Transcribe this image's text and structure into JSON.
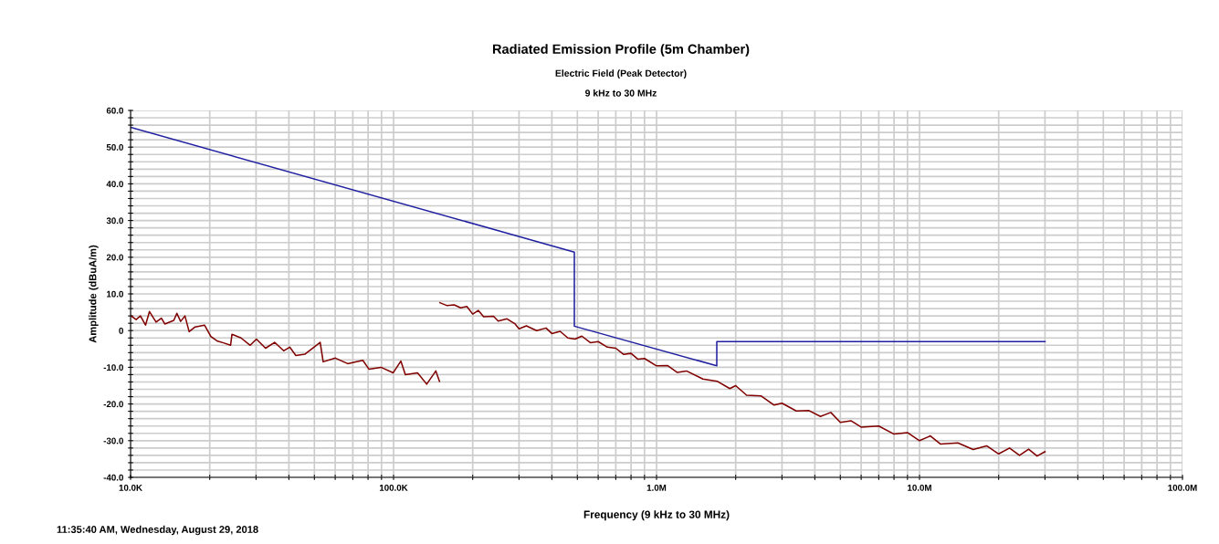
{
  "chart_data": {
    "type": "line",
    "title": "Radiated Emission Profile (5m Chamber)",
    "subtitle": "Electric Field (Peak Detector)\n9 kHz to 30 MHz",
    "xlabel": "Frequency (9 kHz to 30 MHz)",
    "ylabel": "Amplitude (dBuA/m)",
    "annotations": [
      "11:35:40 AM, Wednesday, August 29, 2018"
    ],
    "log": "x",
    "grid": true,
    "marker": "none",
    "line_style": "solid",
    "xlim": [
      10000,
      100000000
    ],
    "ylim": [
      -40,
      60
    ],
    "xticks": [
      {
        "value": 10000,
        "label": "10.0K"
      },
      {
        "value": 20000,
        "label": null
      },
      {
        "value": 30000,
        "label": null
      },
      {
        "value": 40000,
        "label": null
      },
      {
        "value": 50000,
        "label": null
      },
      {
        "value": 60000,
        "label": null
      },
      {
        "value": 70000,
        "label": null
      },
      {
        "value": 80000,
        "label": null
      },
      {
        "value": 90000,
        "label": null
      },
      {
        "value": 100000,
        "label": "100.0K"
      },
      {
        "value": 200000,
        "label": null
      },
      {
        "value": 300000,
        "label": null
      },
      {
        "value": 400000,
        "label": null
      },
      {
        "value": 500000,
        "label": null
      },
      {
        "value": 600000,
        "label": null
      },
      {
        "value": 700000,
        "label": null
      },
      {
        "value": 800000,
        "label": null
      },
      {
        "value": 900000,
        "label": null
      },
      {
        "value": 1000000,
        "label": "1.0M"
      },
      {
        "value": 2000000,
        "label": null
      },
      {
        "value": 3000000,
        "label": null
      },
      {
        "value": 4000000,
        "label": null
      },
      {
        "value": 5000000,
        "label": null
      },
      {
        "value": 6000000,
        "label": null
      },
      {
        "value": 7000000,
        "label": null
      },
      {
        "value": 8000000,
        "label": null
      },
      {
        "value": 9000000,
        "label": null
      },
      {
        "value": 10000000,
        "label": "10.0M"
      },
      {
        "value": 20000000,
        "label": null
      },
      {
        "value": 30000000,
        "label": null
      },
      {
        "value": 40000000,
        "label": null
      },
      {
        "value": 50000000,
        "label": null
      },
      {
        "value": 60000000,
        "label": null
      },
      {
        "value": 70000000,
        "label": null
      },
      {
        "value": 80000000,
        "label": null
      },
      {
        "value": 90000000,
        "label": null
      },
      {
        "value": 100000000,
        "label": "100.0M"
      }
    ],
    "yticks": [
      {
        "value": -40,
        "label": "-40.0"
      },
      {
        "value": -38,
        "label": null
      },
      {
        "value": -36,
        "label": null
      },
      {
        "value": -34,
        "label": null
      },
      {
        "value": -32,
        "label": null
      },
      {
        "value": -30,
        "label": "-30.0"
      },
      {
        "value": -28,
        "label": null
      },
      {
        "value": -26,
        "label": null
      },
      {
        "value": -24,
        "label": null
      },
      {
        "value": -22,
        "label": null
      },
      {
        "value": -20,
        "label": "-20.0"
      },
      {
        "value": -18,
        "label": null
      },
      {
        "value": -16,
        "label": null
      },
      {
        "value": -14,
        "label": null
      },
      {
        "value": -12,
        "label": null
      },
      {
        "value": -10,
        "label": "-10.0"
      },
      {
        "value": -8,
        "label": null
      },
      {
        "value": -6,
        "label": null
      },
      {
        "value": -4,
        "label": null
      },
      {
        "value": -2,
        "label": null
      },
      {
        "value": 0,
        "label": "0"
      },
      {
        "value": 2,
        "label": null
      },
      {
        "value": 4,
        "label": null
      },
      {
        "value": 6,
        "label": null
      },
      {
        "value": 8,
        "label": null
      },
      {
        "value": 10,
        "label": "10.0"
      },
      {
        "value": 12,
        "label": null
      },
      {
        "value": 14,
        "label": null
      },
      {
        "value": 16,
        "label": null
      },
      {
        "value": 18,
        "label": null
      },
      {
        "value": 20,
        "label": "20.0"
      },
      {
        "value": 22,
        "label": null
      },
      {
        "value": 24,
        "label": null
      },
      {
        "value": 26,
        "label": null
      },
      {
        "value": 28,
        "label": null
      },
      {
        "value": 30,
        "label": "30.0"
      },
      {
        "value": 32,
        "label": null
      },
      {
        "value": 34,
        "label": null
      },
      {
        "value": 36,
        "label": null
      },
      {
        "value": 38,
        "label": null
      },
      {
        "value": 40,
        "label": "40.0"
      },
      {
        "value": 42,
        "label": null
      },
      {
        "value": 44,
        "label": null
      },
      {
        "value": 46,
        "label": null
      },
      {
        "value": 48,
        "label": null
      },
      {
        "value": 50,
        "label": "50.0"
      },
      {
        "value": 52,
        "label": null
      },
      {
        "value": 54,
        "label": null
      },
      {
        "value": 56,
        "label": null
      },
      {
        "value": 58,
        "label": null
      },
      {
        "value": 60,
        "label": "60.0"
      }
    ],
    "series": [
      {
        "color": "#1f1fa0",
        "x": [
          10000,
          487000,
          487000,
          1695000,
          1695000,
          30000000
        ],
        "values": [
          55.4,
          21.4,
          1.2,
          -9.6,
          -3.0,
          -3.0
        ]
      },
      {
        "color": "#800000",
        "x": [
          10000,
          10500,
          10900,
          11400,
          11800,
          12500,
          13100,
          13500,
          14600,
          15000,
          15500,
          16100,
          16700,
          17600,
          19100,
          20200,
          21300,
          22700,
          24000,
          24300,
          26300,
          28500,
          30100,
          32600,
          35300,
          38200,
          40300,
          42500,
          46100,
          52600,
          54000,
          60100,
          66900,
          76400,
          80600,
          89600,
          99700,
          106600,
          110900,
          123400,
          133700,
          144800,
          149500
        ],
        "values": [
          4.1,
          3.0,
          4.0,
          1.5,
          5.2,
          2.3,
          3.4,
          1.8,
          2.8,
          4.7,
          2.5,
          4.0,
          -0.3,
          1.0,
          1.5,
          -1.6,
          -2.8,
          -3.4,
          -4.0,
          -1.0,
          -2.0,
          -4.0,
          -2.3,
          -4.8,
          -3.2,
          -5.5,
          -4.5,
          -6.8,
          -6.4,
          -3.2,
          -8.5,
          -7.5,
          -9.0,
          -8.1,
          -10.5,
          -10.0,
          -11.5,
          -8.3,
          -12.0,
          -11.5,
          -14.6,
          -11.0,
          -13.8
        ]
      },
      {
        "color": "#800000",
        "x": [
          150000,
          160000,
          170000,
          180000,
          190000,
          200000,
          210000,
          220000,
          240000,
          250000,
          270000,
          290000,
          300000,
          320000,
          350000,
          380000,
          400000,
          430000,
          460000,
          490000,
          520000,
          560000,
          600000,
          650000,
          700000,
          750000,
          800000,
          850000,
          900000,
          1000000,
          1100000,
          1200000,
          1300000,
          1500000,
          1700000,
          1900000,
          2000000,
          2200000,
          2500000,
          2800000,
          3000000,
          3400000,
          3800000,
          4200000,
          4600000,
          5000000,
          5500000,
          6000000,
          7000000,
          8000000,
          9000000,
          10000000,
          11000000,
          12000000,
          14000000,
          16000000,
          18000000,
          20000000,
          22000000,
          24000000,
          26000000,
          28000000,
          30000000
        ],
        "values": [
          7.6,
          6.8,
          7.0,
          6.2,
          6.6,
          4.5,
          5.5,
          3.8,
          3.9,
          2.6,
          3.2,
          1.8,
          0.5,
          1.3,
          0.0,
          0.7,
          -0.8,
          -0.2,
          -2.0,
          -2.3,
          -1.5,
          -3.3,
          -3.0,
          -4.5,
          -4.8,
          -6.5,
          -6.2,
          -7.8,
          -7.6,
          -9.6,
          -9.5,
          -11.4,
          -11.0,
          -13.2,
          -13.8,
          -15.8,
          -15.0,
          -17.6,
          -17.8,
          -20.3,
          -19.8,
          -21.9,
          -21.8,
          -23.4,
          -22.3,
          -25.0,
          -24.6,
          -26.3,
          -26.0,
          -28.2,
          -27.8,
          -30.0,
          -28.7,
          -30.9,
          -30.6,
          -32.4,
          -31.4,
          -33.6,
          -32.0,
          -34.0,
          -32.3,
          -34.2,
          -33.0
        ]
      }
    ]
  }
}
